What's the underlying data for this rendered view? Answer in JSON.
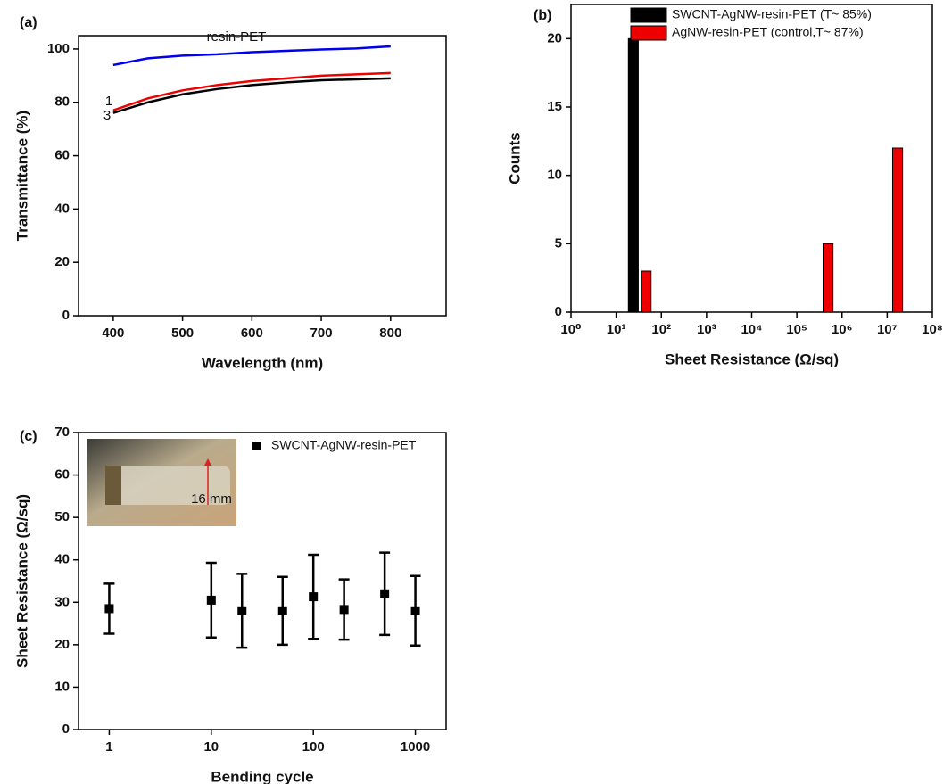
{
  "chart_data": [
    {
      "type": "line",
      "panel_label": "(a)",
      "x_label": "Wavelength (nm)",
      "y_label": "Transmittance (%)",
      "x": [
        400,
        450,
        500,
        550,
        600,
        650,
        700,
        750,
        800
      ],
      "series": [
        {
          "name": "resin-PET",
          "color": "#0000ee",
          "values": [
            94,
            96.5,
            97.5,
            98,
            98.8,
            99.3,
            99.8,
            100.2,
            101
          ]
        },
        {
          "name": "1",
          "color": "#ee0000",
          "values": [
            77,
            81.5,
            84.5,
            86.5,
            88,
            89,
            90,
            90.5,
            91
          ]
        },
        {
          "name": "3",
          "color": "#000000",
          "values": [
            76,
            80,
            83,
            85,
            86.5,
            87.5,
            88.3,
            88.6,
            89
          ]
        }
      ],
      "xlim": [
        350,
        880
      ],
      "xticks": [
        400,
        500,
        600,
        700,
        800
      ],
      "ylim": [
        0,
        105
      ],
      "yticks": [
        0,
        20,
        40,
        60,
        80,
        100
      ]
    },
    {
      "type": "bar",
      "panel_label": "(b)",
      "x_label": "Sheet Resistance (Ω/sq)",
      "y_label": "Counts",
      "log_x": true,
      "series": [
        {
          "name": "SWCNT-AgNW-resin-PET (T~ 85%)",
          "color": "#000000",
          "x": [
            24
          ],
          "values": [
            20
          ]
        },
        {
          "name": "AgNW-resin-PET (control,T~ 87%)",
          "color": "#ee0000",
          "x": [
            46,
            490000,
            17000000
          ],
          "values": [
            3,
            5,
            12
          ]
        }
      ],
      "xlim": [
        1,
        100000000
      ],
      "xticks": [
        {
          "value": 1,
          "label": "10⁰"
        },
        {
          "value": 10,
          "label": "10¹"
        },
        {
          "value": 100,
          "label": "10²"
        },
        {
          "value": 1000,
          "label": "10³"
        },
        {
          "value": 10000,
          "label": "10⁴"
        },
        {
          "value": 100000,
          "label": "10⁵"
        },
        {
          "value": 1000000,
          "label": "10⁶"
        },
        {
          "value": 10000000,
          "label": "10⁷"
        },
        {
          "value": 100000000,
          "label": "10⁸"
        }
      ],
      "ylim": [
        0,
        22.5
      ],
      "yticks": [
        0,
        5,
        10,
        15,
        20
      ],
      "legend": "top-left"
    },
    {
      "type": "errorbar",
      "panel_label": "(c)",
      "x_label": "Bending cycle",
      "y_label": "Sheet Resistance (Ω/sq)",
      "log_x": true,
      "inset_label": "16 mm",
      "series": [
        {
          "name": "SWCNT-AgNW-resin-PET",
          "color": "#000000",
          "x": [
            1,
            10,
            20,
            50,
            100,
            200,
            500,
            1000
          ],
          "values": [
            28.5,
            30.5,
            28,
            28,
            31.3,
            28.3,
            32,
            28
          ],
          "errors": [
            5.9,
            8.8,
            8.7,
            8,
            9.9,
            7.1,
            9.7,
            8.2
          ]
        }
      ],
      "xlim": [
        0.5,
        2000
      ],
      "xticks": [
        1,
        10,
        100,
        1000
      ],
      "ylim": [
        0,
        70
      ],
      "yticks": [
        0,
        10,
        20,
        30,
        40,
        50,
        60,
        70
      ],
      "legend": "top-right"
    }
  ]
}
